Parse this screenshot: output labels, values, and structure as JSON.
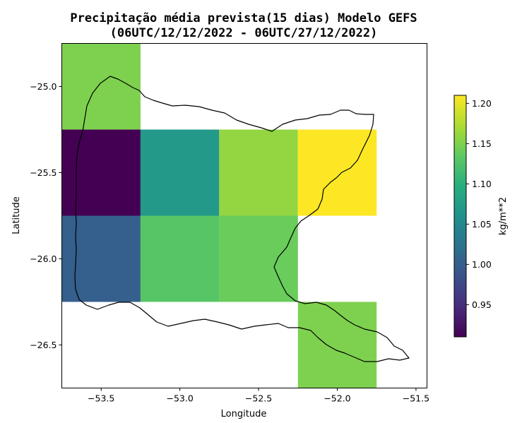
{
  "chart_data": {
    "type": "heatmap",
    "title": "Precipitação média prevista(15 dias) Modelo GEFS",
    "subtitle": "(06UTC/12/12/2022 - 06UTC/27/12/2022)",
    "xlabel": "Longitude",
    "ylabel": "Latitude",
    "xlim": [
      -53.75,
      -51.43
    ],
    "ylim": [
      -26.75,
      -24.75
    ],
    "x_ticks": [
      -53.5,
      -53.0,
      -52.5,
      -52.0,
      -51.5
    ],
    "x_tick_labels": [
      "−53.5",
      "−53.0",
      "−52.5",
      "−52.0",
      "−51.5"
    ],
    "y_ticks": [
      -25.0,
      -25.5,
      -26.0,
      -26.5
    ],
    "y_tick_labels": [
      "−25.0",
      "−25.5",
      "−26.0",
      "−26.5"
    ],
    "cell_size_deg": 0.5,
    "cells": [
      {
        "lon": -53.5,
        "lat": -25.0,
        "value": 1.15
      },
      {
        "lon": -53.5,
        "lat": -25.5,
        "value": 0.91
      },
      {
        "lon": -53.0,
        "lat": -25.5,
        "value": 1.07
      },
      {
        "lon": -52.5,
        "lat": -25.5,
        "value": 1.16
      },
      {
        "lon": -52.0,
        "lat": -25.5,
        "value": 1.21
      },
      {
        "lon": -53.5,
        "lat": -26.0,
        "value": 1.0
      },
      {
        "lon": -53.0,
        "lat": -26.0,
        "value": 1.13
      },
      {
        "lon": -52.5,
        "lat": -26.0,
        "value": 1.14
      },
      {
        "lon": -52.0,
        "lat": -26.5,
        "value": 1.15
      }
    ],
    "colorbar": {
      "label": "kg/m**2",
      "range": [
        0.91,
        1.21
      ],
      "ticks": [
        0.95,
        1.0,
        1.05,
        1.1,
        1.15,
        1.2
      ],
      "tick_labels": [
        "0.95",
        "1.00",
        "1.05",
        "1.10",
        "1.15",
        "1.20"
      ],
      "colormap": "viridis"
    },
    "outline_color": "#000000"
  }
}
